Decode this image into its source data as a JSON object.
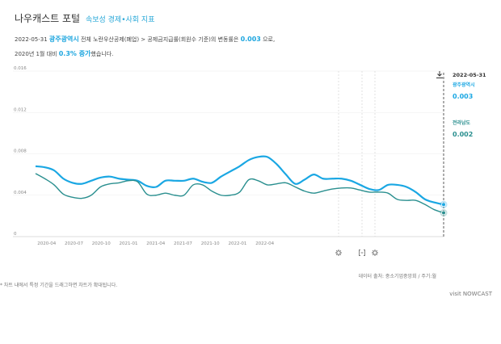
{
  "header": {
    "title": "나우캐스트 포털",
    "subtitle": "속보성 경제•사회 지표"
  },
  "summary": {
    "date": "2022-05-31",
    "region": "광주광역시",
    "text_a": "전체 노란우산공제(폐업) > 공제금지급률(회원수 기준)의 변동률은",
    "value": "0.003",
    "text_b": "으로,",
    "text_c": "2020년 1월 대비",
    "change": "0.3% 증가",
    "text_d": "했습니다."
  },
  "chart_data": {
    "type": "line",
    "ylim": [
      0,
      0.016
    ],
    "yticks": [
      "0.016",
      "0.012",
      "0.008",
      "0.004",
      "0"
    ],
    "xtick_labels": [
      "2020-04",
      "2020-07",
      "2020-10",
      "2021-01",
      "2021-04",
      "2021-07",
      "2021-10",
      "2022-01",
      "2022-04"
    ],
    "series": [
      {
        "name": "광주광역시",
        "color": "#1aa7e3",
        "values": [
          0.0068,
          0.0067,
          0.0064,
          0.0056,
          0.0052,
          0.0051,
          0.0054,
          0.0057,
          0.0058,
          0.0056,
          0.0055,
          0.0054,
          0.0049,
          0.0048,
          0.0054,
          0.0054,
          0.0054,
          0.0056,
          0.0053,
          0.0052,
          0.0058,
          0.0063,
          0.0068,
          0.0074,
          0.0077,
          0.0077,
          0.007,
          0.006,
          0.0051,
          0.0055,
          0.006,
          0.0056,
          0.0056,
          0.0056,
          0.0054,
          0.005,
          0.0046,
          0.0045,
          0.005,
          0.005,
          0.0048,
          0.0043,
          0.0036,
          0.0033,
          0.0031
        ]
      },
      {
        "name": "전라남도",
        "color": "#2a8f8f",
        "values": [
          0.0061,
          0.0056,
          0.005,
          0.0041,
          0.0038,
          0.0037,
          0.004,
          0.0048,
          0.0051,
          0.0052,
          0.0054,
          0.0053,
          0.0041,
          0.004,
          0.0042,
          0.004,
          0.004,
          0.005,
          0.005,
          0.0044,
          0.004,
          0.004,
          0.0043,
          0.0055,
          0.0054,
          0.005,
          0.0051,
          0.0052,
          0.0048,
          0.0044,
          0.0042,
          0.0044,
          0.0046,
          0.0047,
          0.0047,
          0.0045,
          0.0043,
          0.0043,
          0.0042,
          0.0036,
          0.0035,
          0.0035,
          0.0031,
          0.0026,
          0.0023
        ]
      }
    ]
  },
  "legend": {
    "date": "2022-05-31",
    "items": [
      {
        "name": "광주광역시",
        "value": "0.003",
        "color": "#1aa7e3"
      },
      {
        "name": "전라남도",
        "value": "0.002",
        "color": "#2a8f8f"
      }
    ]
  },
  "footer": {
    "source": "데이터 출처: 중소기업중앙회 / 주기:월",
    "note": "* 차트 내에서 특정 기간을 드래그하면 차트가 확대됩니다.",
    "visit": "visit NOWCAST"
  },
  "icons": [
    "gear-icon",
    "fit-icon",
    "download-icon"
  ]
}
